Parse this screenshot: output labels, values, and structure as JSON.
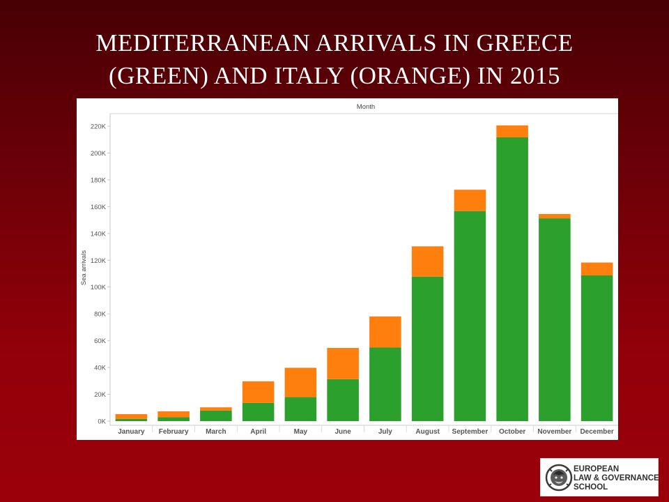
{
  "slide": {
    "title": "MEDITERRANEAN ARRIVALS IN GREECE\n(GREEN) AND ITALY (ORANGE) IN 2015"
  },
  "logo": {
    "lines": [
      "EUROPEAN",
      "LAW & GOVERNANCE",
      "SCHOOL"
    ]
  },
  "chart_data": {
    "type": "bar",
    "stacked": true,
    "top_label": "Month",
    "ylabel": "Sea arrivals",
    "ylim": [
      0,
      220000
    ],
    "yticks": [
      0,
      20000,
      40000,
      60000,
      80000,
      100000,
      120000,
      140000,
      160000,
      180000,
      200000,
      220000
    ],
    "ytick_labels": [
      "0K",
      "20K",
      "40K",
      "60K",
      "80K",
      "100K",
      "120K",
      "140K",
      "160K",
      "180K",
      "200K",
      "220K"
    ],
    "grid": false,
    "categories": [
      "January",
      "February",
      "March",
      "April",
      "May",
      "June",
      "July",
      "August",
      "September",
      "October",
      "November",
      "December"
    ],
    "series": [
      {
        "color": "#2ca02c",
        "values": [
          1700,
          2900,
          7900,
          13600,
          17900,
          31300,
          54900,
          107800,
          156700,
          211700,
          151300,
          108700
        ]
      },
      {
        "color": "#ff7f0e",
        "values": [
          3500,
          4400,
          2400,
          16100,
          21900,
          23300,
          23200,
          22600,
          15900,
          8900,
          3200,
          9600
        ]
      }
    ],
    "colors": {
      "green": "#2ca02c",
      "orange": "#ff7f0e"
    }
  }
}
